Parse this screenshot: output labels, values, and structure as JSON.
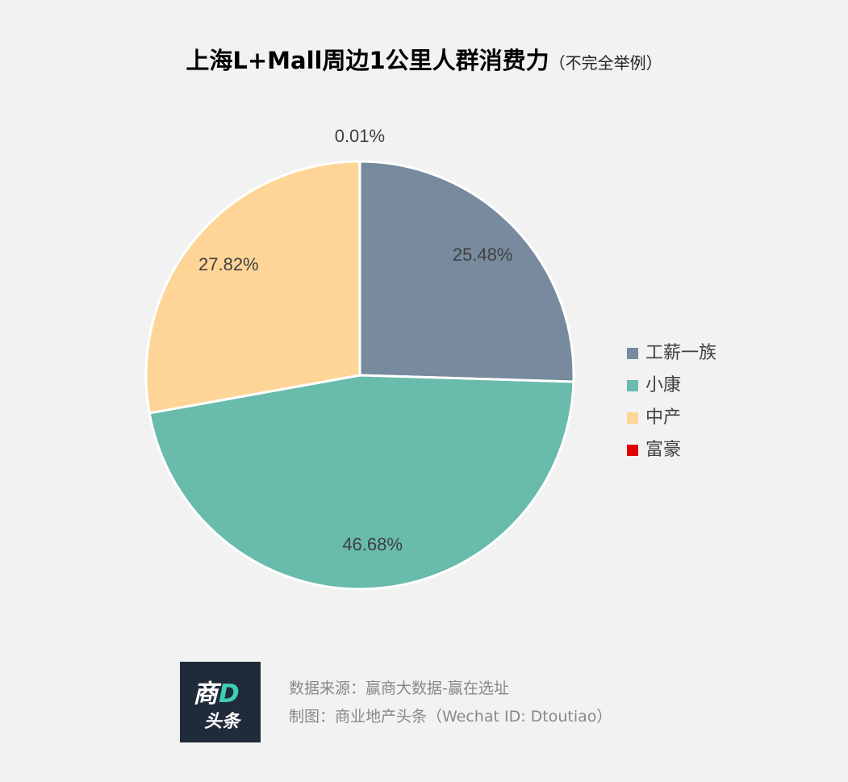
{
  "title": "上海L+Mall周边1公里人群消费力",
  "subtitle": "（不完全举例）",
  "chart_data": {
    "type": "pie",
    "categories": [
      "工薪一族",
      "小康",
      "中产",
      "富豪"
    ],
    "values": [
      25.48,
      46.68,
      27.82,
      0.01
    ],
    "labels": [
      "25.48%",
      "46.68%",
      "27.82%",
      "0.01%"
    ],
    "colors": [
      "#778a9e",
      "#69bbac",
      "#fed597",
      "#e00000"
    ],
    "legend_position": "right"
  },
  "footer": {
    "source": "数据来源：赢商大数据-赢在选址",
    "credit": "制图：商业地产头条（Wechat ID: Dtoutiao）"
  },
  "logo": {
    "top_text": "商",
    "top_accent": "D",
    "bottom_text": "头条"
  }
}
